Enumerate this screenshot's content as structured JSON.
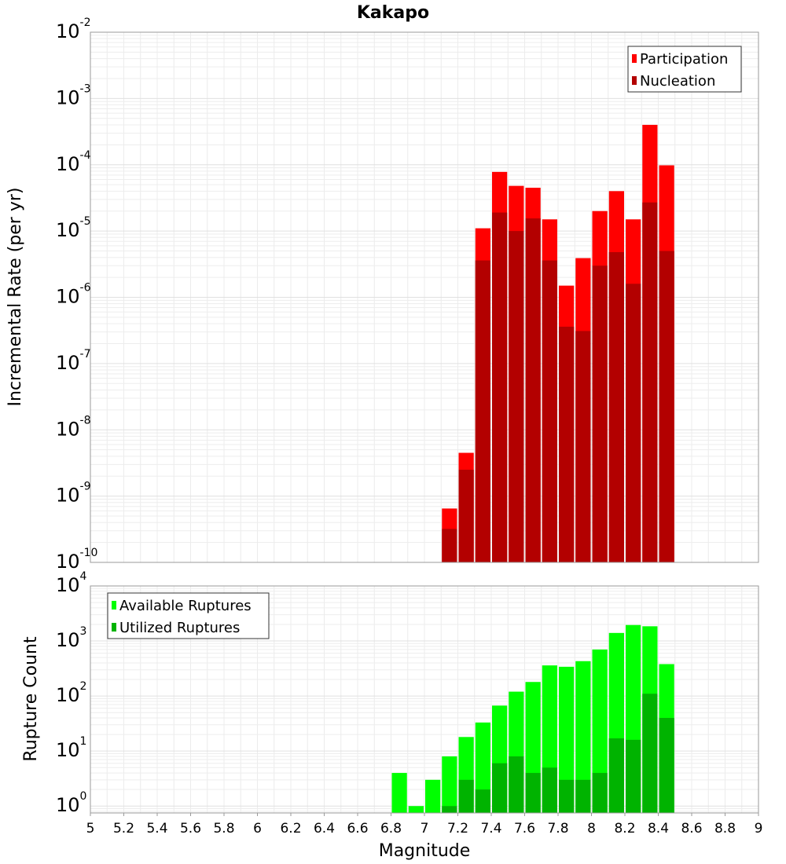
{
  "chart_data": [
    {
      "type": "bar",
      "title": "Kakapo",
      "xlabel": "",
      "ylabel": "Incremental Rate (per yr)",
      "xlim": [
        5,
        9
      ],
      "ylim": [
        1e-10,
        0.01
      ],
      "yscale": "log",
      "grid": true,
      "legend_position": "top-right",
      "bin_width": 0.1,
      "y_tick_exponents": [
        "-10",
        "-9",
        "-8",
        "-7",
        "-6",
        "-5",
        "-4",
        "-3",
        "-2"
      ],
      "x": [
        7.15,
        7.25,
        7.35,
        7.45,
        7.55,
        7.65,
        7.75,
        7.85,
        7.95,
        8.05,
        8.15,
        8.25,
        8.35,
        8.45
      ],
      "series": [
        {
          "name": "Participation",
          "color": "#ff0000",
          "values": [
            6.5e-10,
            4.5e-09,
            1.1e-05,
            7.8e-05,
            4.8e-05,
            4.5e-05,
            1.5e-05,
            1.5e-06,
            3.9e-06,
            2e-05,
            4e-05,
            1.5e-05,
            0.0004,
            9.8e-05
          ]
        },
        {
          "name": "Nucleation",
          "color": "#b30000",
          "values": [
            3.2e-10,
            2.5e-09,
            3.6e-06,
            1.9e-05,
            1e-05,
            1.55e-05,
            3.6e-06,
            3.6e-07,
            3.1e-07,
            3e-06,
            4.8e-06,
            1.6e-06,
            2.7e-05,
            5e-06
          ]
        }
      ]
    },
    {
      "type": "bar",
      "xlabel": "Magnitude",
      "ylabel": "Rupture Count",
      "xlim": [
        5,
        9
      ],
      "ylim": [
        0.75,
        10000
      ],
      "yscale": "log",
      "grid": true,
      "legend_position": "top-left",
      "bin_width": 0.1,
      "x_ticks": [
        "5",
        "5.2",
        "5.4",
        "5.6",
        "5.8",
        "6",
        "6.2",
        "6.4",
        "6.6",
        "6.8",
        "7",
        "7.2",
        "7.4",
        "7.6",
        "7.8",
        "8",
        "8.2",
        "8.4",
        "8.6",
        "8.8",
        "9"
      ],
      "y_tick_exponents": [
        "0",
        "1",
        "2",
        "3",
        "4"
      ],
      "x": [
        6.85,
        6.95,
        7.05,
        7.15,
        7.25,
        7.35,
        7.45,
        7.55,
        7.65,
        7.75,
        7.85,
        7.95,
        8.05,
        8.15,
        8.25,
        8.35,
        8.45
      ],
      "series": [
        {
          "name": "Available Ruptures",
          "color": "#00ff00",
          "values": [
            4,
            1,
            3,
            8,
            18,
            33,
            67,
            120,
            180,
            360,
            340,
            430,
            700,
            1400,
            1950,
            1850,
            380
          ]
        },
        {
          "name": "Utilized Ruptures",
          "color": "#00b300",
          "values": [
            0,
            0,
            0,
            1,
            3,
            2,
            6,
            8,
            4,
            5,
            3,
            3,
            4,
            17,
            16,
            110,
            40
          ]
        }
      ]
    }
  ]
}
